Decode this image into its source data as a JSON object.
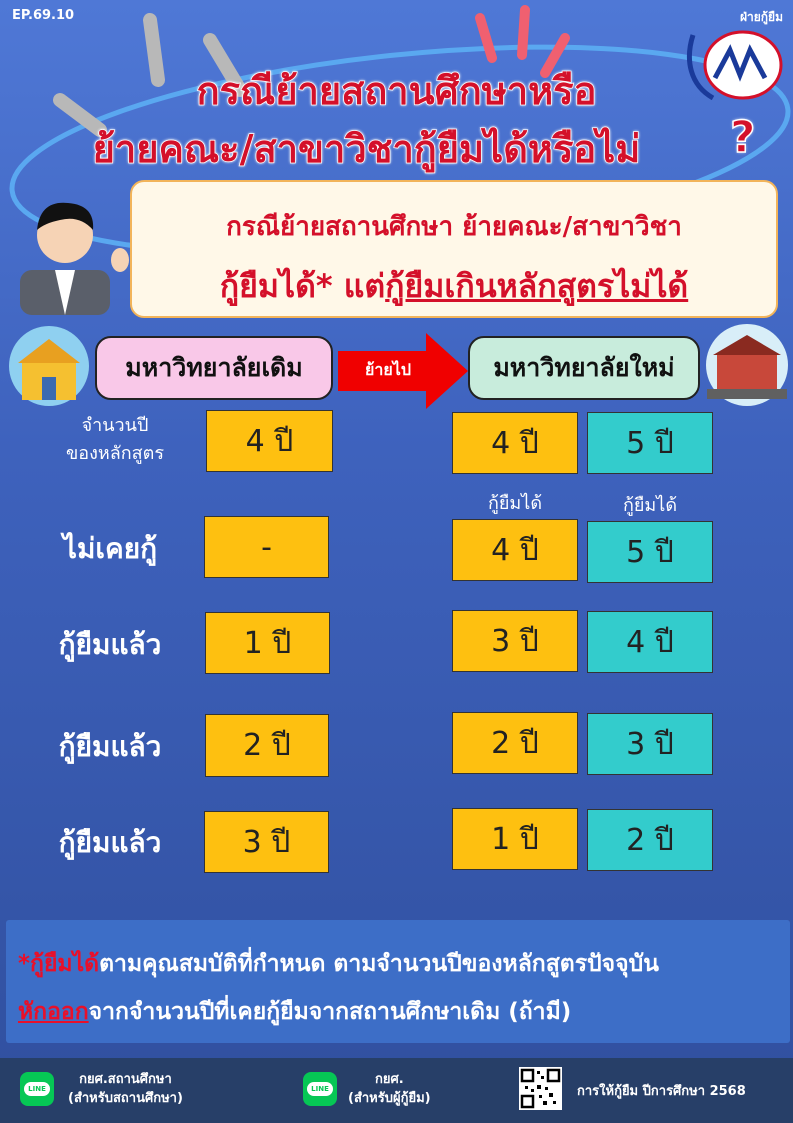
{
  "header": {
    "episode": "EP.69.10",
    "department": "ฝ่ายกู้ยืม",
    "logo_text": "กยศ"
  },
  "title": {
    "line1": "กรณีย้ายสถานศึกษาหรือ",
    "line2": "ย้ายคณะ/สาขาวิชากู้ยืมได้หรือไม่",
    "question_mark": "?"
  },
  "info": {
    "line1": "กรณีย้ายสถานศึกษา ย้ายคณะ/สาขาวิชา",
    "line2_plain": "กู้ยืมได้* แต่",
    "line2_underlined": "กู้ยืมเกินหลักสูตรไม่ได้"
  },
  "flow": {
    "old_university": "มหาวิทยาลัยเดิม",
    "move_label": "ย้ายไป",
    "new_university": "มหาวิทยาลัยใหม่"
  },
  "table": {
    "course_years_label_1": "จำนวนปี",
    "course_years_label_2": "ของหลักสูตร",
    "borrowable_label": "กู้ยืมได้",
    "rows": [
      {
        "label": "",
        "old": "4 ปี",
        "new_a": "4 ปี",
        "new_b": "5 ปี"
      },
      {
        "label": "ไม่เคยกู้",
        "old": "-",
        "new_a": "4 ปี",
        "new_b": "5 ปี"
      },
      {
        "label": "กู้ยืมแล้ว",
        "old": "1 ปี",
        "new_a": "3 ปี",
        "new_b": "4 ปี"
      },
      {
        "label": "กู้ยืมแล้ว",
        "old": "2 ปี",
        "new_a": "2 ปี",
        "new_b": "3 ปี"
      },
      {
        "label": "กู้ยืมแล้ว",
        "old": "3 ปี",
        "new_a": "1 ปี",
        "new_b": "2 ปี"
      }
    ]
  },
  "note": {
    "line1_red": "*กู้ยืมได้",
    "line1_rest": "ตามคุณสมบัติที่กำหนด ตามจำนวนปีของหลักสูตรปัจจุบัน",
    "line2_red": "หักออก",
    "line2_rest": "จากจำนวนปีที่เคยกู้ยืมจากสถานศึกษาเดิม (ถ้ามี)"
  },
  "footer": {
    "line_icon_text": "LINE",
    "contact1_title": "กยศ.สถานศึกษา",
    "contact1_sub": "(สำหรับสถานศึกษา)",
    "contact2_title": "กยศ.",
    "contact2_sub": "(สำหรับผู้กู้ยืม)",
    "qr_caption": "การให้กู้ยืม ปีการศึกษา 2568"
  },
  "colors": {
    "title_red": "#d4102a",
    "old_col": "#fec010",
    "new_col": "#33cccc",
    "old_pill": "#f9c8e8",
    "new_pill": "#c8ecdc",
    "footer": "#273f68"
  }
}
